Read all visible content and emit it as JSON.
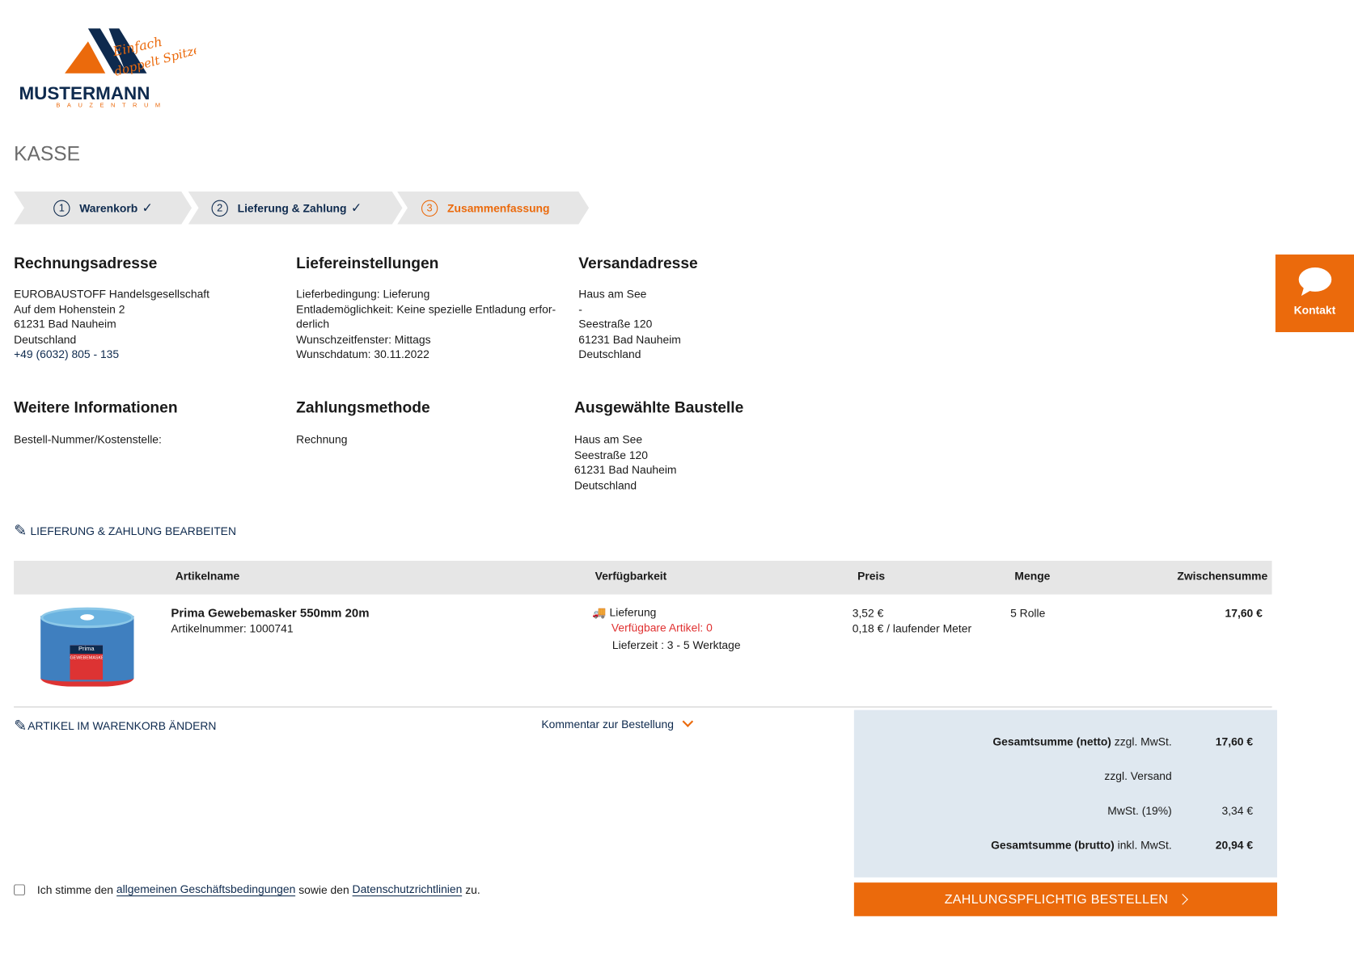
{
  "logo": {
    "brand": "MUSTERMANN",
    "sub": "BAUZENTRUM",
    "slogan": "Einfach doppelt Spitze!",
    "colors": {
      "navy": "#0e2a4e",
      "orange": "#eb6a0c"
    }
  },
  "page_title": "KASSE",
  "steps": [
    {
      "num": "1",
      "label": "Warenkorb",
      "done": true
    },
    {
      "num": "2",
      "label": "Lieferung & Zahlung",
      "done": true
    },
    {
      "num": "3",
      "label": "Zusammenfassung",
      "active": true
    }
  ],
  "billing": {
    "title": "Rechnungsadresse",
    "lines": [
      "EUROBAUSTOFF Handelsgesellschaft",
      "Auf dem Hohenstein 2",
      "61231 Bad Nauheim",
      "Deutschland"
    ],
    "phone": "+49 (6032) 805 - 135"
  },
  "delivery_settings": {
    "title": "Liefereinstellungen",
    "lines": [
      "Lieferbedingung: Lieferung",
      "Entlademöglichkeit: Keine spezielle Entladung erfor-",
      "derlich",
      "Wunschzeitfenster: Mittags",
      "Wunschdatum: 30.11.2022"
    ]
  },
  "shipping": {
    "title": "Versandadresse",
    "lines": [
      "Haus am See",
      "-",
      "Seestraße 120",
      "61231 Bad Nauheim",
      "Deutschland"
    ]
  },
  "further": {
    "title": "Weitere Informationen",
    "lines": [
      "Bestell-Nummer/Kostenstelle:"
    ]
  },
  "payment": {
    "title": "Zahlungsmethode",
    "lines": [
      "Rechnung"
    ]
  },
  "site": {
    "title": "Ausgewählte Baustelle",
    "lines": [
      "Haus am See",
      "Seestraße 120",
      "61231 Bad Nauheim",
      "Deutschland"
    ]
  },
  "contact": {
    "label": "Kontakt",
    "icon": "chat-bubble-icon"
  },
  "edit_delivery": "LIEFERUNG & ZAHLUNG BEARBEITEN",
  "table": {
    "headers": [
      "Artikelname",
      "Verfügbarkeit",
      "Preis",
      "Menge",
      "Zwischensumme"
    ],
    "rows": [
      {
        "name": "Prima Gewebemasker 550mm 20m",
        "article_no": "Artikelnummer: 1000741",
        "availability": "Lieferung",
        "available": "Verfügbare Artikel: 0",
        "lead_time": "Lieferzeit : 3 - 5 Werktage",
        "price": "3,52 €",
        "unit_price": "0,18 € / laufender Meter",
        "qty": "5 Rolle",
        "subtotal": "17,60 €",
        "image_label": "GEWEBEMASKER",
        "image_brand": "Prima"
      }
    ]
  },
  "edit_cart": "ARTIKEL IM WARENKORB ÄNDERN",
  "comment": "Kommentar zur Bestellung",
  "summary": {
    "net_bold": "Gesamtsumme (netto)",
    "net_rest": " zzgl. MwSt.",
    "net_value": "17,60 €",
    "shipping": "zzgl. Versand",
    "vat": "MwSt. (19%)",
    "vat_value": "3,34 €",
    "gross_bold": "Gesamtsumme (brutto)",
    "gross_rest": " inkl. MwSt.",
    "gross_value": "20,94 €"
  },
  "order_button": "ZAHLUNGSPFLICHTIG BESTELLEN",
  "terms": {
    "pre": "Ich stimme den ",
    "agb": "allgemeinen Geschäftsbedingungen",
    "mid": " sowie den ",
    "privacy": "Datenschutzrichtlinien",
    "post": " zu."
  }
}
